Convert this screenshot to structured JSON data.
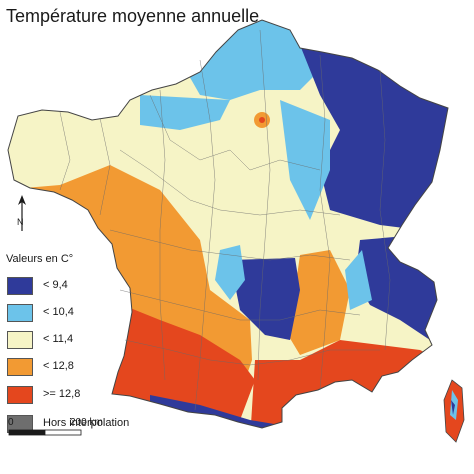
{
  "title": "Température moyenne annuelle",
  "north": {
    "label": "N"
  },
  "legend": {
    "title": "Valeurs en C°",
    "items": [
      {
        "label": "< 9,4",
        "color": "#2f3a9a"
      },
      {
        "label": "< 10,4",
        "color": "#6cc3ea"
      },
      {
        "label": "< 11,4",
        "color": "#f6f4c6"
      },
      {
        "label": "< 12,8",
        "color": "#f29a33"
      },
      {
        "label": ">= 12,8",
        "color": "#e4471e"
      },
      {
        "label": "Hors interpolation",
        "color": "#6e6e6e"
      }
    ]
  },
  "scale": {
    "start": "0",
    "end": "200 km"
  }
}
